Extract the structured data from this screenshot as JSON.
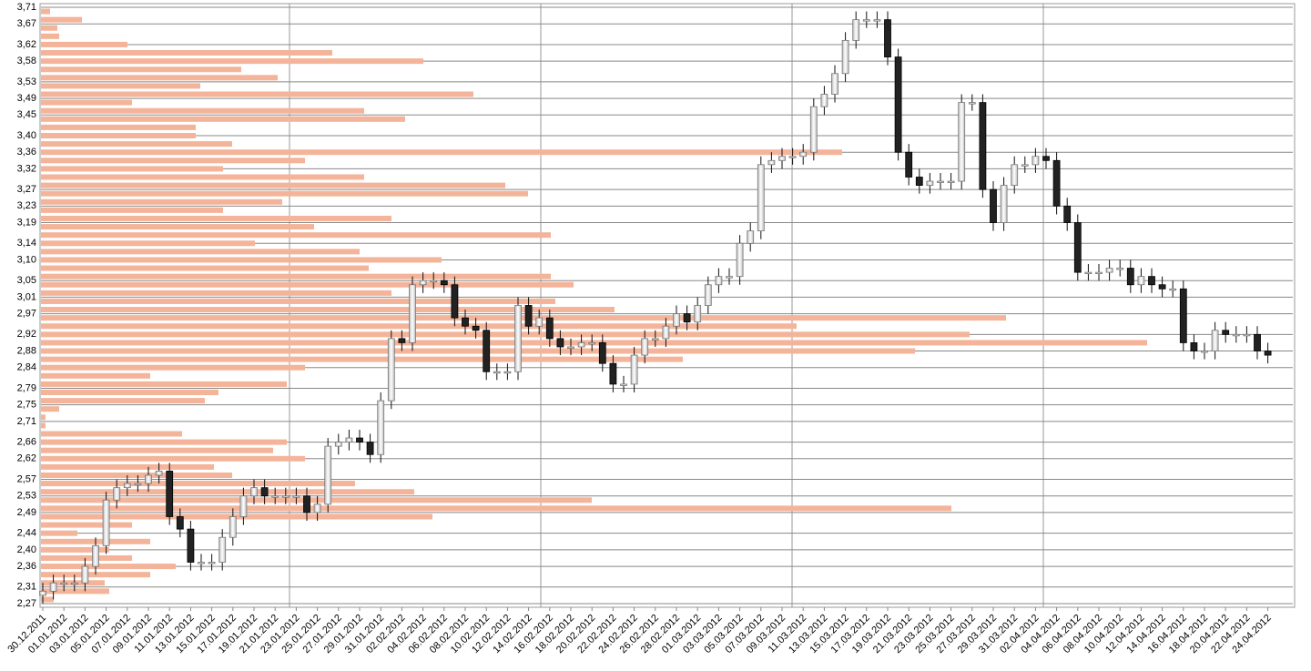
{
  "chart_data": {
    "type": "candlestick",
    "categories": [
      "30.12.2011",
      null,
      "01.01.2012",
      null,
      "03.01.2012",
      null,
      "05.01.2012",
      null,
      "07.01.2012",
      null,
      "09.01.2012",
      null,
      "11.01.2012",
      null,
      "13.01.2012",
      null,
      "15.01.2012",
      null,
      "17.01.2012",
      null,
      "19.01.2012",
      null,
      "21.01.2012",
      null,
      "23.01.2012",
      null,
      "25.01.2012",
      null,
      "27.01.2012",
      null,
      "29.01.2012",
      null,
      "31.01.2012",
      null,
      "02.02.2012",
      null,
      "04.02.2012",
      null,
      "06.02.2012",
      null,
      "08.02.2012",
      null,
      "10.02.2012",
      null,
      "12.02.2012",
      null,
      "14.02.2012",
      null,
      "16.02.2012",
      null,
      "18.02.2012",
      null,
      "20.02.2012",
      null,
      "22.02.2012",
      null,
      "24.02.2012",
      null,
      "26.02.2012",
      null,
      "28.02.2012",
      null,
      "01.03.2012",
      null,
      "03.03.2012",
      null,
      "05.03.2012",
      null,
      "07.03.2012",
      null,
      "09.03.2012",
      null,
      "11.03.2012",
      null,
      "13.03.2012",
      null,
      "15.03.2012",
      null,
      "17.03.2012",
      null,
      "19.03.2012",
      null,
      "21.03.2012",
      null,
      "23.03.2012",
      null,
      "25.03.2012",
      null,
      "27.03.2012",
      null,
      "29.03.2012",
      null,
      "31.03.2012",
      null,
      "02.04.2012",
      null,
      "04.04.2012",
      null,
      "06.04.2012",
      null,
      "08.04.2012",
      null,
      "10.04.2012",
      null,
      "12.04.2012",
      null,
      "14.04.2012",
      null,
      "16.04.2012",
      null,
      "18.04.2012",
      null,
      "20.04.2012",
      null,
      "22.04.2012",
      null,
      "24.04.2012"
    ],
    "open": [
      2.29,
      2.3,
      2.32,
      2.32,
      2.32,
      2.36,
      2.41,
      2.52,
      2.55,
      2.56,
      2.56,
      2.58,
      2.59,
      2.48,
      2.45,
      2.37,
      2.37,
      2.37,
      2.43,
      2.48,
      2.53,
      2.55,
      2.53,
      2.53,
      2.53,
      2.53,
      2.49,
      2.51,
      2.65,
      2.66,
      2.67,
      2.66,
      2.63,
      2.76,
      2.91,
      2.9,
      3.04,
      3.05,
      3.05,
      3.04,
      2.96,
      2.94,
      2.93,
      2.83,
      2.83,
      2.83,
      2.99,
      2.94,
      2.96,
      2.91,
      2.89,
      2.89,
      2.9,
      2.9,
      2.85,
      2.8,
      2.8,
      2.87,
      2.91,
      2.91,
      2.94,
      2.97,
      2.95,
      2.99,
      3.04,
      3.06,
      3.06,
      3.14,
      3.17,
      3.33,
      3.34,
      3.35,
      3.35,
      3.36,
      3.47,
      3.5,
      3.55,
      3.63,
      3.68,
      3.68,
      3.68,
      3.59,
      3.36,
      3.3,
      3.28,
      3.29,
      3.29,
      3.29,
      3.48,
      3.48,
      3.27,
      3.19,
      3.28,
      3.33,
      3.33,
      3.35,
      3.34,
      3.23,
      3.19,
      3.07,
      3.07,
      3.07,
      3.08,
      3.08,
      3.04,
      3.06,
      3.04,
      3.03,
      3.03,
      2.9,
      2.88,
      2.88,
      2.93,
      2.92,
      2.92,
      2.92,
      2.88
    ],
    "high": [
      2.32,
      2.34,
      2.34,
      2.34,
      2.38,
      2.43,
      2.54,
      2.57,
      2.58,
      2.58,
      2.6,
      2.61,
      2.61,
      2.5,
      2.47,
      2.39,
      2.39,
      2.45,
      2.5,
      2.55,
      2.57,
      2.57,
      2.55,
      2.55,
      2.55,
      2.55,
      2.53,
      2.67,
      2.68,
      2.69,
      2.69,
      2.68,
      2.78,
      2.93,
      2.93,
      3.06,
      3.07,
      3.07,
      3.07,
      3.06,
      2.98,
      2.96,
      2.95,
      2.85,
      2.85,
      3.01,
      3.01,
      2.98,
      2.98,
      2.93,
      2.91,
      2.92,
      2.92,
      2.92,
      2.87,
      2.82,
      2.89,
      2.93,
      2.93,
      2.96,
      2.99,
      2.99,
      3.01,
      3.06,
      3.08,
      3.08,
      3.16,
      3.19,
      3.35,
      3.36,
      3.37,
      3.37,
      3.38,
      3.49,
      3.52,
      3.57,
      3.65,
      3.7,
      3.7,
      3.7,
      3.7,
      3.61,
      3.38,
      3.32,
      3.31,
      3.31,
      3.31,
      3.5,
      3.5,
      3.5,
      3.29,
      3.3,
      3.35,
      3.35,
      3.37,
      3.37,
      3.36,
      3.25,
      3.21,
      3.09,
      3.09,
      3.1,
      3.1,
      3.1,
      3.08,
      3.08,
      3.06,
      3.05,
      3.05,
      2.92,
      2.9,
      2.95,
      2.95,
      2.94,
      2.94,
      2.94,
      2.9
    ],
    "low": [
      2.27,
      2.28,
      2.3,
      2.3,
      2.3,
      2.34,
      2.39,
      2.5,
      2.53,
      2.54,
      2.54,
      2.56,
      2.46,
      2.43,
      2.35,
      2.35,
      2.35,
      2.35,
      2.41,
      2.46,
      2.51,
      2.51,
      2.51,
      2.51,
      2.51,
      2.47,
      2.47,
      2.49,
      2.63,
      2.64,
      2.64,
      2.61,
      2.61,
      2.74,
      2.88,
      2.88,
      3.02,
      3.03,
      3.02,
      2.94,
      2.92,
      2.91,
      2.81,
      2.81,
      2.81,
      2.81,
      2.92,
      2.92,
      2.89,
      2.87,
      2.87,
      2.87,
      2.88,
      2.83,
      2.78,
      2.78,
      2.78,
      2.85,
      2.89,
      2.89,
      2.92,
      2.93,
      2.93,
      2.97,
      3.02,
      3.04,
      3.04,
      3.12,
      3.15,
      3.31,
      3.32,
      3.33,
      3.33,
      3.34,
      3.45,
      3.48,
      3.53,
      3.61,
      3.66,
      3.66,
      3.57,
      3.34,
      3.28,
      3.26,
      3.26,
      3.27,
      3.27,
      3.27,
      3.46,
      3.25,
      3.17,
      3.17,
      3.26,
      3.31,
      3.31,
      3.32,
      3.21,
      3.17,
      3.05,
      3.05,
      3.05,
      3.05,
      3.06,
      3.02,
      3.02,
      3.02,
      3.01,
      3.01,
      2.88,
      2.86,
      2.86,
      2.86,
      2.9,
      2.9,
      2.9,
      2.86,
      2.85
    ],
    "close": [
      2.3,
      2.32,
      2.32,
      2.32,
      2.36,
      2.41,
      2.52,
      2.55,
      2.56,
      2.56,
      2.58,
      2.59,
      2.48,
      2.45,
      2.37,
      2.37,
      2.37,
      2.43,
      2.48,
      2.53,
      2.55,
      2.53,
      2.53,
      2.53,
      2.53,
      2.49,
      2.51,
      2.65,
      2.66,
      2.67,
      2.66,
      2.63,
      2.76,
      2.91,
      2.9,
      3.04,
      3.05,
      3.05,
      3.04,
      2.96,
      2.94,
      2.93,
      2.83,
      2.83,
      2.83,
      2.99,
      2.94,
      2.96,
      2.91,
      2.89,
      2.89,
      2.9,
      2.9,
      2.85,
      2.8,
      2.8,
      2.87,
      2.91,
      2.91,
      2.94,
      2.97,
      2.95,
      2.99,
      3.04,
      3.06,
      3.06,
      3.14,
      3.17,
      3.33,
      3.34,
      3.35,
      3.35,
      3.36,
      3.47,
      3.5,
      3.55,
      3.63,
      3.68,
      3.68,
      3.68,
      3.59,
      3.36,
      3.3,
      3.28,
      3.29,
      3.29,
      3.29,
      3.48,
      3.48,
      3.27,
      3.19,
      3.28,
      3.33,
      3.33,
      3.35,
      3.34,
      3.23,
      3.19,
      3.07,
      3.07,
      3.07,
      3.08,
      3.08,
      3.04,
      3.06,
      3.04,
      3.03,
      3.03,
      2.9,
      2.88,
      2.88,
      2.93,
      2.92,
      2.92,
      2.92,
      2.88,
      2.87
    ],
    "up_color": "#e8e8e8",
    "down_color": "#222222",
    "ylim": [
      2.27,
      3.71
    ],
    "yticks": [
      {
        "value": 2.27,
        "label": "2,27"
      },
      {
        "value": 2.31,
        "label": "2,31"
      },
      {
        "value": 2.36,
        "label": "2,36"
      },
      {
        "value": 2.4,
        "label": "2,40"
      },
      {
        "value": 2.44,
        "label": "2,44"
      },
      {
        "value": 2.49,
        "label": "2,49"
      },
      {
        "value": 2.53,
        "label": "2,53"
      },
      {
        "value": 2.57,
        "label": "2,57"
      },
      {
        "value": 2.62,
        "label": "2,62"
      },
      {
        "value": 2.66,
        "label": "2,66"
      },
      {
        "value": 2.71,
        "label": "2,71"
      },
      {
        "value": 2.75,
        "label": "2,75"
      },
      {
        "value": 2.79,
        "label": "2,79"
      },
      {
        "value": 2.84,
        "label": "2,84"
      },
      {
        "value": 2.88,
        "label": "2,88"
      },
      {
        "value": 2.92,
        "label": "2,92"
      },
      {
        "value": 2.97,
        "label": "2,97"
      },
      {
        "value": 3.01,
        "label": "3,01"
      },
      {
        "value": 3.05,
        "label": "3,05"
      },
      {
        "value": 3.1,
        "label": "3,10"
      },
      {
        "value": 3.14,
        "label": "3,14"
      },
      {
        "value": 3.19,
        "label": "3,19"
      },
      {
        "value": 3.23,
        "label": "3,23"
      },
      {
        "value": 3.27,
        "label": "3,27"
      },
      {
        "value": 3.32,
        "label": "3,32"
      },
      {
        "value": 3.36,
        "label": "3,36"
      },
      {
        "value": 3.4,
        "label": "3,40"
      },
      {
        "value": 3.45,
        "label": "3,45"
      },
      {
        "value": 3.49,
        "label": "3,49"
      },
      {
        "value": 3.53,
        "label": "3,53"
      },
      {
        "value": 3.58,
        "label": "3,58"
      },
      {
        "value": 3.62,
        "label": "3,62"
      },
      {
        "value": 3.67,
        "label": "3,67"
      },
      {
        "value": 3.71,
        "label": "3,71"
      }
    ],
    "grid": true,
    "volume_profile": {
      "color": "#f4b49a",
      "levels": [
        3.7,
        3.68,
        3.66,
        3.64,
        3.62,
        3.6,
        3.58,
        3.56,
        3.54,
        3.52,
        3.5,
        3.48,
        3.46,
        3.44,
        3.42,
        3.4,
        3.38,
        3.36,
        3.34,
        3.32,
        3.3,
        3.28,
        3.26,
        3.24,
        3.22,
        3.2,
        3.18,
        3.16,
        3.14,
        3.12,
        3.1,
        3.08,
        3.06,
        3.04,
        3.02,
        3.0,
        2.98,
        2.96,
        2.94,
        2.92,
        2.9,
        2.88,
        2.86,
        2.84,
        2.82,
        2.8,
        2.78,
        2.76,
        2.74,
        2.72,
        2.7,
        2.68,
        2.66,
        2.64,
        2.62,
        2.6,
        2.58,
        2.56,
        2.54,
        2.52,
        2.5,
        2.48,
        2.46,
        2.44,
        2.42,
        2.4,
        2.38,
        2.36,
        2.34,
        2.32,
        2.3,
        2.28
      ],
      "values": [
        10,
        45,
        18,
        20,
        95,
        320,
        420,
        220,
        260,
        175,
        475,
        100,
        355,
        400,
        170,
        170,
        210,
        880,
        290,
        200,
        355,
        510,
        535,
        265,
        200,
        385,
        300,
        560,
        235,
        350,
        440,
        360,
        560,
        585,
        385,
        565,
        630,
        1060,
        830,
        1020,
        1215,
        960,
        705,
        290,
        120,
        270,
        195,
        180,
        20,
        5,
        5,
        155,
        270,
        255,
        290,
        190,
        210,
        345,
        410,
        605,
        1000,
        430,
        100,
        40,
        120,
        75,
        100,
        148,
        120,
        70,
        75,
        14
      ]
    }
  }
}
